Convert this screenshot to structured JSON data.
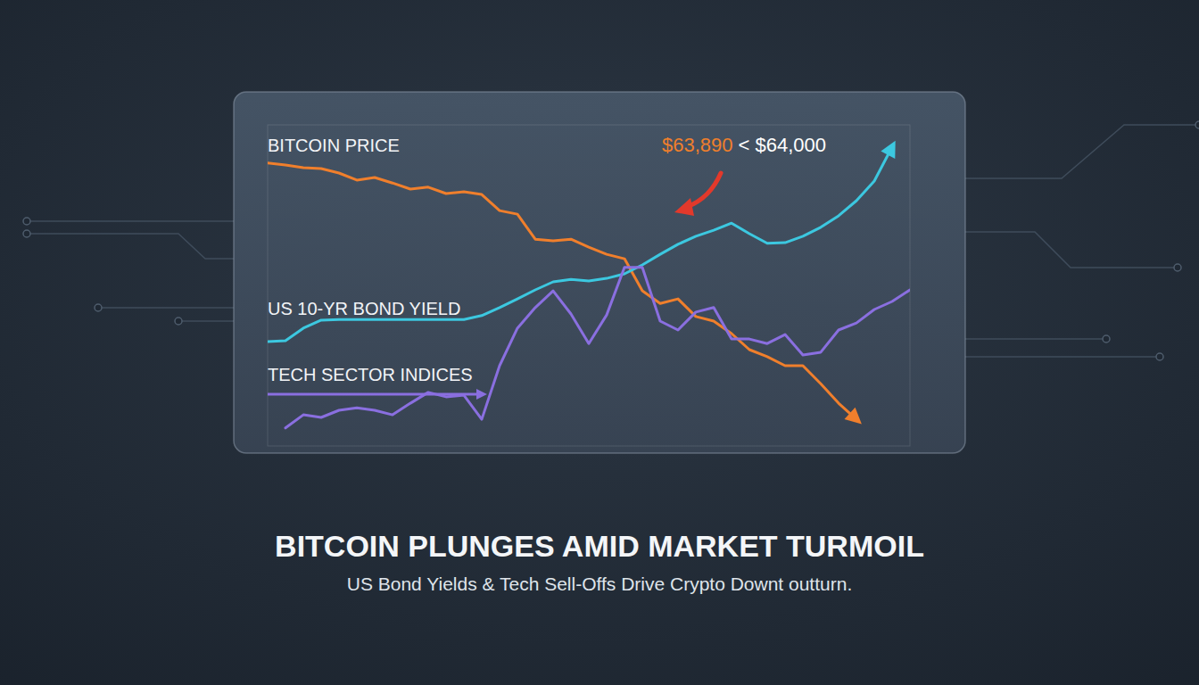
{
  "chart_data": {
    "type": "line",
    "title": "BITCOIN PLUNGES AMID MARKET TURMOIL",
    "subtitle": "US Bond Yields & Tech Sell-Offs Drive Crypto Downt outturn.",
    "x": [
      0,
      1,
      2,
      3,
      4,
      5,
      6,
      7,
      8,
      9,
      10,
      11,
      12,
      13,
      14,
      15,
      16,
      17,
      18,
      19,
      20,
      21,
      22,
      23,
      24,
      25,
      26,
      27,
      28,
      29,
      30,
      31,
      32,
      33,
      34,
      35,
      36
    ],
    "xlim": [
      0,
      36
    ],
    "ylim": [
      0,
      100
    ],
    "tick_labels": false,
    "grid": false,
    "annotations": [
      {
        "text": "$63,890",
        "color": "#f07f2c"
      },
      {
        "text": "< $64,000",
        "color": "#ffffff"
      }
    ],
    "series": [
      {
        "name": "BITCOIN PRICE",
        "color": "#f07f2c",
        "values": [
          88.1,
          87.5,
          86.7,
          86.4,
          85.0,
          82.8,
          83.6,
          81.9,
          80.0,
          80.6,
          78.6,
          79.2,
          78.3,
          73.3,
          72.2,
          64.4,
          63.9,
          64.4,
          61.9,
          59.7,
          58.3,
          48.3,
          44.4,
          45.8,
          40.3,
          38.9,
          35.0,
          30.0,
          27.8,
          25.0,
          25.0,
          19.4,
          13.3,
          8.3,
          null,
          null,
          null
        ]
      },
      {
        "name": "US 10-YR BOND YIELD",
        "color": "#3cc8e0",
        "values": [
          32.5,
          32.8,
          36.7,
          39.2,
          39.4,
          39.4,
          39.4,
          39.4,
          39.4,
          39.4,
          39.4,
          39.4,
          40.6,
          43.1,
          45.8,
          48.6,
          51.1,
          51.9,
          51.4,
          52.2,
          53.6,
          56.4,
          59.7,
          62.8,
          65.3,
          67.2,
          69.4,
          66.1,
          63.1,
          63.3,
          65.3,
          68.1,
          71.7,
          76.4,
          82.5,
          93.1,
          null
        ]
      },
      {
        "name": "TECH SECTOR INDICES",
        "color": "#8a6fe0",
        "values": [
          null,
          5.6,
          9.7,
          8.9,
          11.1,
          11.9,
          11.1,
          9.7,
          13.3,
          16.7,
          15.3,
          15.8,
          8.3,
          25.0,
          36.7,
          43.1,
          48.3,
          41.1,
          31.9,
          40.8,
          55.6,
          55.6,
          38.9,
          36.1,
          41.7,
          43.1,
          33.3,
          33.3,
          31.9,
          34.7,
          28.3,
          29.2,
          36.1,
          38.3,
          42.5,
          45.0,
          48.6
        ]
      }
    ]
  }
}
